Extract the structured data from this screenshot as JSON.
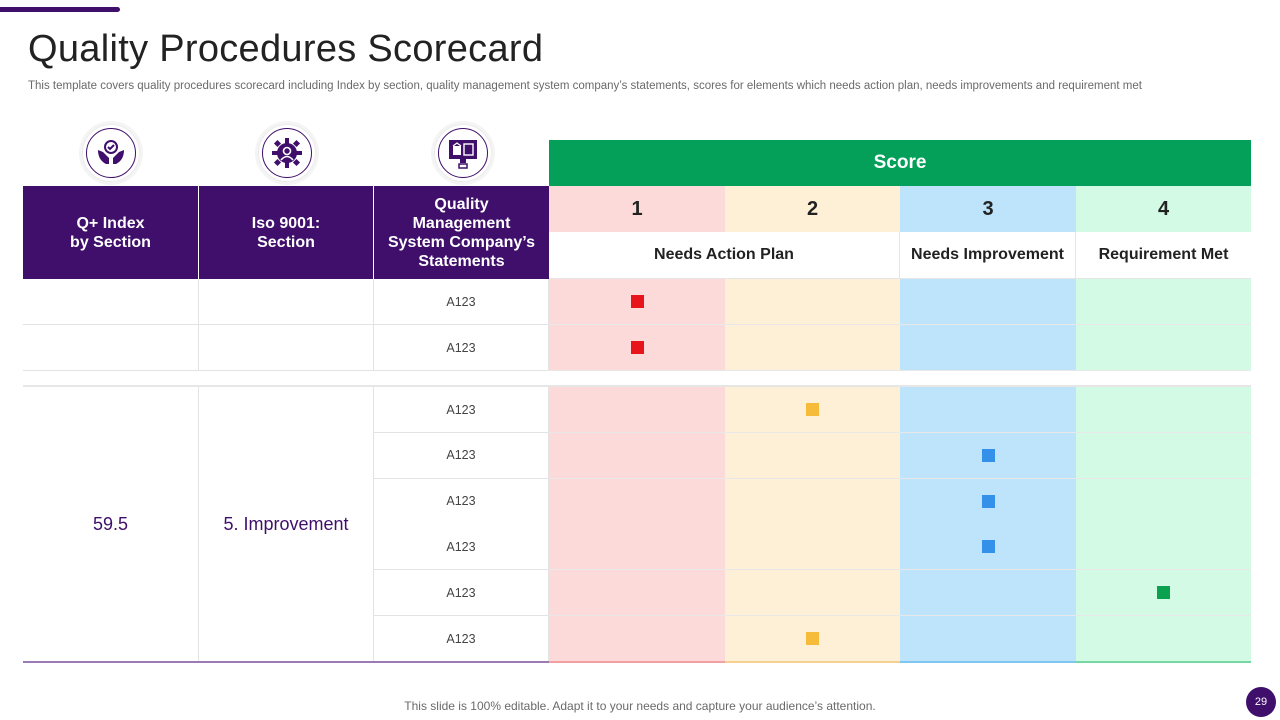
{
  "slide": {
    "title": "Quality Procedures Scorecard",
    "subtitle": "This template covers quality procedures scorecard including Index by section, quality management system company’s statements, scores for elements which needs action plan, needs improvements and requirement met",
    "footer": "This slide is 100% editable. Adapt it to your needs and capture your audience’s attention.",
    "page_number": "29"
  },
  "icons": [
    "hands-quality-icon",
    "gear-person-icon",
    "monitor-building-icon"
  ],
  "table": {
    "headers": {
      "index": "Q+ Index\nby Section",
      "iso": "Iso 9001:\nSection",
      "statements": "Quality\nManagement\nSystem Company’s\nStatements",
      "score": "Score"
    },
    "score_columns": [
      {
        "number": "1",
        "color": "#fddada"
      },
      {
        "number": "2",
        "color": "#fdf0d6"
      },
      {
        "number": "3",
        "color": "#bde4fb"
      },
      {
        "number": "4",
        "color": "#d3fae5"
      }
    ],
    "score_labels": {
      "needs_action": "Needs Action Plan",
      "needs_improvement": "Needs Improvement",
      "requirement_met": "Requirement Met"
    },
    "group1_rows": [
      {
        "code": "A123",
        "score": 1
      },
      {
        "code": "A123",
        "score": 1
      }
    ],
    "group2": {
      "index_value": "59.5",
      "section": "5. Improvement",
      "rows": [
        {
          "code": "A123",
          "score": 2
        },
        {
          "code": "A123",
          "score": 3
        },
        {
          "code": "A123",
          "score": 3
        },
        {
          "code": "A123",
          "score": 3
        },
        {
          "code": "A123",
          "score": 4
        },
        {
          "code": "A123",
          "score": 2
        }
      ]
    },
    "marker_colors": {
      "1": "#e8141c",
      "2": "#f6bb3a",
      "3": "#3391ea",
      "4": "#0aa24e"
    }
  }
}
